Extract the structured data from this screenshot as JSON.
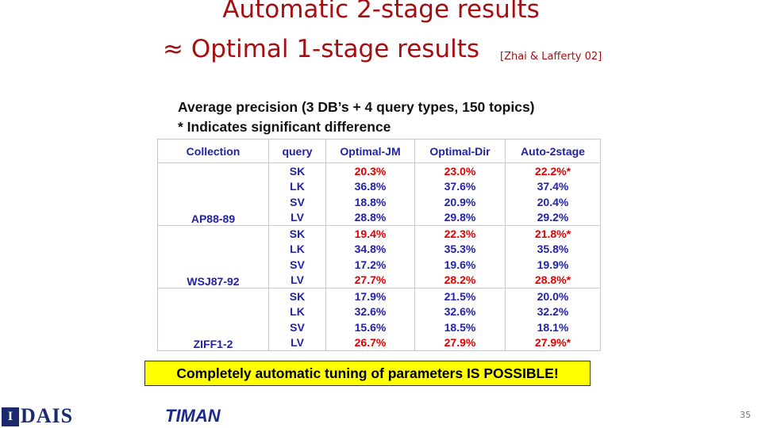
{
  "title": {
    "line1": "Automatic 2-stage results",
    "line2": "≈ Optimal 1-stage results",
    "citation": "[Zhai & Lafferty 02]"
  },
  "subtitle": {
    "line1": "Average precision (3 DB’s + 4 query types, 150 topics)",
    "line2": "* Indicates significant difference"
  },
  "table": {
    "header": [
      "Collection",
      "query",
      "Optimal-JM",
      "Optimal-Dir",
      "Auto-2stage"
    ],
    "groups": [
      {
        "collection": "AP88-89",
        "rows": [
          {
            "query": "SK",
            "values": [
              "20.3%",
              "23.0%",
              "22.2%*"
            ],
            "color": "#e00000"
          },
          {
            "query": "LK",
            "values": [
              "36.8%",
              "37.6%",
              "37.4%"
            ],
            "color": "#2222a8"
          },
          {
            "query": "SV",
            "values": [
              "18.8%",
              "20.9%",
              "20.4%"
            ],
            "color": "#2222a8"
          },
          {
            "query": "LV",
            "values": [
              "28.8%",
              "29.8%",
              "29.2%"
            ],
            "color": "#2222a8"
          }
        ]
      },
      {
        "collection": "WSJ87-92",
        "rows": [
          {
            "query": "SK",
            "values": [
              "19.4%",
              "22.3%",
              "21.8%*"
            ],
            "color": "#e00000"
          },
          {
            "query": "LK",
            "values": [
              "34.8%",
              "35.3%",
              "35.8%"
            ],
            "color": "#2222a8"
          },
          {
            "query": "SV",
            "values": [
              "17.2%",
              "19.6%",
              "19.9%"
            ],
            "color": "#2222a8"
          },
          {
            "query": "LV",
            "values": [
              "27.7%",
              "28.2%",
              "28.8%*"
            ],
            "color": "#e00000"
          }
        ]
      },
      {
        "collection": "ZIFF1-2",
        "rows": [
          {
            "query": "SK",
            "values": [
              "17.9%",
              "21.5%",
              "20.0%"
            ],
            "color": "#2222a8"
          },
          {
            "query": "LK",
            "values": [
              "32.6%",
              "32.6%",
              "32.2%"
            ],
            "color": "#2222a8"
          },
          {
            "query": "SV",
            "values": [
              "15.6%",
              "18.5%",
              "18.1%"
            ],
            "color": "#2222a8"
          },
          {
            "query": "LV",
            "values": [
              "26.7%",
              "27.9%",
              "27.9%*"
            ],
            "color": "#e00000"
          }
        ]
      }
    ]
  },
  "banner": "Completely automatic tuning of parameters IS POSSIBLE!",
  "footer": {
    "logo1_mark": "I",
    "logo1": "DAIS",
    "logo2": "TIMAN",
    "page": "35"
  }
}
